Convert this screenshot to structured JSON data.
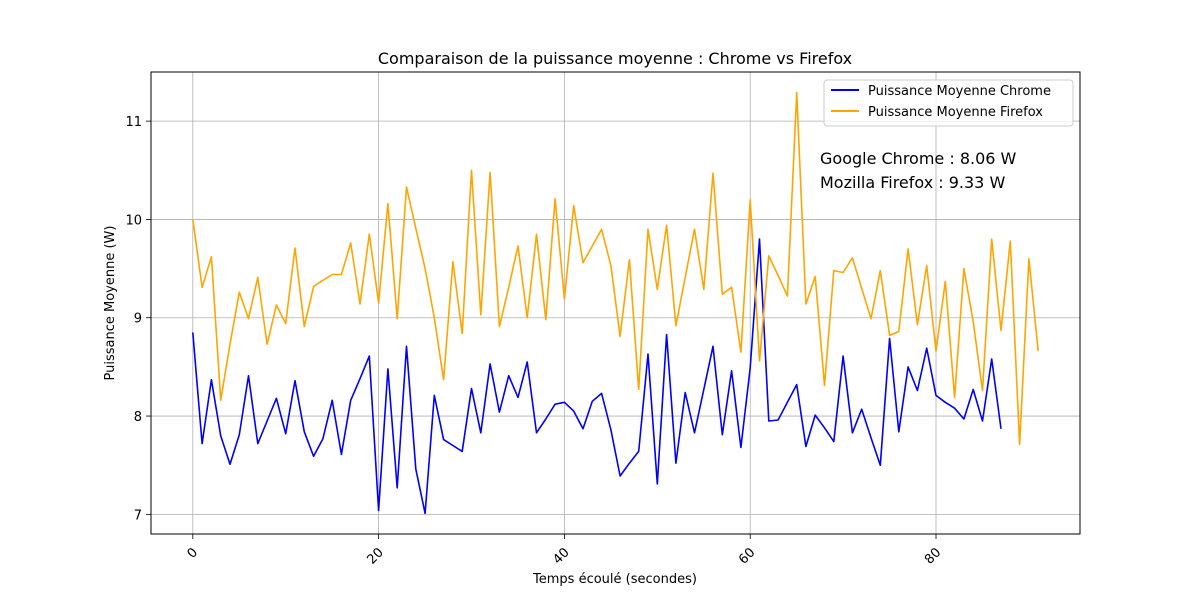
{
  "chart_data": {
    "type": "line",
    "title": "Comparaison de la puissance moyenne  : Chrome vs Firefox",
    "xlabel": "Temps écoulé (secondes)",
    "ylabel": "Puissance Moyenne (W)",
    "xlim": [
      -4.5,
      95.5
    ],
    "ylim": [
      6.8,
      11.5
    ],
    "xticks": [
      0,
      20,
      40,
      60,
      80
    ],
    "yticks": [
      7,
      8,
      9,
      10,
      11
    ],
    "grid": true,
    "legend_position": "top-right",
    "series": [
      {
        "name": "Puissance Moyenne Chrome",
        "color": "#0000ff",
        "x": [
          0,
          1,
          2,
          3,
          4,
          5,
          6,
          7,
          8,
          9,
          10,
          11,
          12,
          13,
          14,
          15,
          16,
          17,
          18,
          19,
          20,
          21,
          22,
          23,
          24,
          25,
          26,
          27,
          28,
          29,
          30,
          31,
          32,
          33,
          34,
          35,
          36,
          37,
          38,
          39,
          40,
          41,
          42,
          43,
          44,
          45,
          46,
          47,
          48,
          49,
          50,
          51,
          52,
          53,
          54,
          55,
          56,
          57,
          58,
          59,
          60,
          61,
          62,
          63,
          64,
          65,
          66,
          67,
          68,
          69,
          70,
          71,
          72,
          73,
          74,
          75,
          76,
          77,
          78,
          79,
          80,
          81,
          82,
          83,
          84,
          85,
          86,
          87
        ],
        "y": [
          8.85,
          7.72,
          8.37,
          7.8,
          7.51,
          7.81,
          8.41,
          7.72,
          7.95,
          8.18,
          7.82,
          8.36,
          7.84,
          7.59,
          7.77,
          8.16,
          7.61,
          8.16,
          8.38,
          8.61,
          7.04,
          8.48,
          7.27,
          8.71,
          7.46,
          7.01,
          8.21,
          7.76,
          7.7,
          7.64,
          8.28,
          7.83,
          8.53,
          8.04,
          8.41,
          8.19,
          8.55,
          7.83,
          7.97,
          8.12,
          8.14,
          8.05,
          7.87,
          8.15,
          8.23,
          7.86,
          7.39,
          7.52,
          7.64,
          8.63,
          7.31,
          8.83,
          7.52,
          8.24,
          7.83,
          8.27,
          8.71,
          7.81,
          8.46,
          7.68,
          8.49,
          9.8,
          7.95,
          7.96,
          8.14,
          8.32,
          7.69,
          8.01,
          7.88,
          7.74,
          8.61,
          7.83,
          8.07,
          7.78,
          7.5,
          8.79,
          7.84,
          8.5,
          8.26,
          8.69,
          8.21,
          8.14,
          8.08,
          7.97,
          8.27,
          7.95,
          8.58,
          7.87
        ]
      },
      {
        "name": "Puissance Moyenne Firefox",
        "color": "#ffa500",
        "x": [
          0,
          1,
          2,
          3,
          4,
          5,
          6,
          7,
          8,
          9,
          10,
          11,
          12,
          13,
          14,
          15,
          16,
          17,
          18,
          19,
          20,
          21,
          22,
          23,
          24,
          25,
          26,
          27,
          28,
          29,
          30,
          31,
          32,
          33,
          34,
          35,
          36,
          37,
          38,
          39,
          40,
          41,
          42,
          43,
          44,
          45,
          46,
          47,
          48,
          49,
          50,
          51,
          52,
          53,
          54,
          55,
          56,
          57,
          58,
          59,
          60,
          61,
          62,
          63,
          64,
          65,
          66,
          67,
          68,
          69,
          70,
          71,
          72,
          73,
          74,
          75,
          76,
          77,
          78,
          79,
          80,
          81,
          82,
          83,
          84,
          85,
          86,
          87,
          88,
          89,
          90,
          91
        ],
        "y": [
          10.0,
          9.31,
          9.62,
          8.16,
          8.73,
          9.26,
          8.99,
          9.41,
          8.73,
          9.13,
          8.94,
          9.71,
          8.91,
          9.32,
          9.38,
          9.44,
          9.44,
          9.76,
          9.14,
          9.85,
          9.15,
          10.16,
          8.99,
          10.33,
          9.91,
          9.5,
          9.0,
          8.37,
          9.57,
          8.84,
          10.5,
          9.03,
          10.48,
          8.91,
          9.31,
          9.73,
          9.0,
          9.85,
          8.98,
          10.21,
          9.19,
          10.14,
          9.56,
          9.73,
          9.9,
          9.53,
          8.81,
          9.59,
          8.27,
          9.9,
          9.29,
          9.94,
          8.92,
          9.41,
          9.9,
          9.29,
          10.47,
          9.24,
          9.31,
          8.65,
          10.2,
          8.56,
          9.63,
          9.43,
          9.22,
          11.29,
          9.14,
          9.42,
          8.31,
          9.48,
          9.46,
          9.61,
          9.3,
          8.99,
          9.48,
          8.82,
          8.86,
          9.7,
          8.93,
          9.53,
          8.66,
          9.37,
          8.19,
          9.5,
          8.96,
          8.26,
          9.8,
          8.87,
          9.78,
          7.71,
          9.6,
          8.66
        ]
      }
    ],
    "annotations": [
      {
        "text": "Google Chrome : 8.06 W",
        "color": "#0000ff"
      },
      {
        "text": "Mozilla Firefox : 9.33 W",
        "color": "#ffa500"
      }
    ]
  }
}
